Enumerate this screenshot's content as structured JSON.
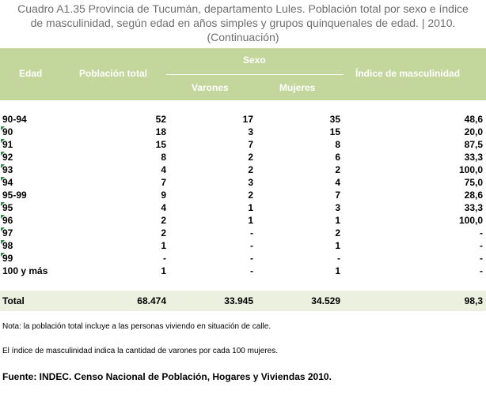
{
  "title": {
    "line1": "Cuadro A1.35 Provincia de Tucumán, departamento Lules. Población total por sexo e índice",
    "line2": "de masculinidad, según edad en años simples y grupos quinquenales de edad.  | 2010.",
    "line3": "(Continuación)"
  },
  "header": {
    "edad": "Edad",
    "poblacion_total": "Población total",
    "sexo": "Sexo",
    "varones": "Varones",
    "mujeres": "Mujeres",
    "indice": "Índice de masculinidad"
  },
  "rows": [
    {
      "edad": "90-94",
      "total": "52",
      "varones": "17",
      "mujeres": "35",
      "indice": "48,6"
    },
    {
      "edad": "90",
      "total": "18",
      "varones": "3",
      "mujeres": "15",
      "indice": "20,0"
    },
    {
      "edad": "91",
      "total": "15",
      "varones": "7",
      "mujeres": "8",
      "indice": "87,5"
    },
    {
      "edad": "92",
      "total": "8",
      "varones": "2",
      "mujeres": "6",
      "indice": "33,3"
    },
    {
      "edad": "93",
      "total": "4",
      "varones": "2",
      "mujeres": "2",
      "indice": "100,0"
    },
    {
      "edad": "94",
      "total": "7",
      "varones": "3",
      "mujeres": "4",
      "indice": "75,0"
    },
    {
      "edad": "95-99",
      "total": "9",
      "varones": "2",
      "mujeres": "7",
      "indice": "28,6"
    },
    {
      "edad": "95",
      "total": "4",
      "varones": "1",
      "mujeres": "3",
      "indice": "33,3"
    },
    {
      "edad": "96",
      "total": "2",
      "varones": "1",
      "mujeres": "1",
      "indice": "100,0"
    },
    {
      "edad": "97",
      "total": "2",
      "varones": "-",
      "mujeres": "2",
      "indice": "-"
    },
    {
      "edad": "98",
      "total": "1",
      "varones": "-",
      "mujeres": "1",
      "indice": "-"
    },
    {
      "edad": "99",
      "total": "-",
      "varones": "-",
      "mujeres": "-",
      "indice": "-"
    },
    {
      "edad": "100 y más",
      "total": "1",
      "varones": "-",
      "mujeres": "1",
      "indice": "-"
    }
  ],
  "total": {
    "label": "Total",
    "total": "68.474",
    "varones": "33.945",
    "mujeres": "34.529",
    "indice": "98,3"
  },
  "notes": {
    "note1": "Nota: la población total incluye a las personas viviendo en situación de calle.",
    "note2": "El índice de masculinidad indica la cantidad de varones por cada 100 mujeres."
  },
  "source": "Fuente: INDEC. Censo Nacional de Población, Hogares y Viviendas 2010.",
  "colors": {
    "header_bg": "#c3d69b",
    "total_bg": "#ebf1de",
    "title_text": "#6e6e6e",
    "cell_marker": "#2e8b3c"
  }
}
